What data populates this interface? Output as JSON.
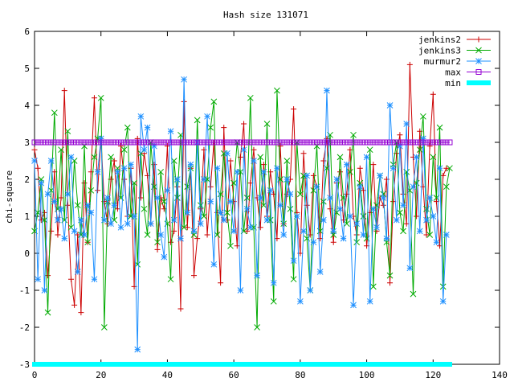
{
  "chart_data": {
    "type": "line",
    "title": "Hash size 131071",
    "xlabel": "",
    "ylabel": "chi-square",
    "xlim": [
      0,
      140
    ],
    "ylim": [
      -3,
      6
    ],
    "x_ticks": [
      0,
      20,
      40,
      60,
      80,
      100,
      120,
      140
    ],
    "y_ticks": [
      -3,
      -2,
      -1,
      0,
      1,
      2,
      3,
      4,
      5,
      6
    ],
    "legend_position": "top-right",
    "grid": false,
    "series": [
      {
        "name": "jenkins2",
        "color": "#cc0000",
        "marker": "plus",
        "values": [
          2.8,
          2.3,
          0.9,
          1.1,
          -0.6,
          0.6,
          2.2,
          0.5,
          1.5,
          4.4,
          1.3,
          -0.7,
          -1.4,
          0.5,
          -1.6,
          1.9,
          0.3,
          2.2,
          4.2,
          1.7,
          3.1,
          1.4,
          0.8,
          2.0,
          2.5,
          1.2,
          2.9,
          2.0,
          1.0,
          2.3,
          -0.9,
          3.1,
          1.5,
          2.7,
          2.1,
          0.8,
          2.4,
          0.1,
          1.5,
          1.2,
          2.9,
          0.3,
          0.6,
          1.8,
          -1.5,
          4.1,
          0.7,
          2.3,
          -0.6,
          0.4,
          1.2,
          2.8,
          0.5,
          1.8,
          3.0,
          1.1,
          -0.8,
          3.4,
          0.9,
          2.5,
          1.4,
          0.2,
          2.6,
          3.5,
          0.6,
          1.9,
          2.8,
          1.5,
          0.7,
          2.4,
          1.0,
          2.2,
          1.6,
          0.4,
          2.9,
          0.8,
          1.6,
          2.0,
          3.9,
          1.1,
          0.0,
          2.7,
          1.3,
          0.5,
          2.1,
          1.8,
          0.4,
          2.5,
          3.1,
          1.2,
          0.3,
          1.9,
          2.2,
          0.9,
          1.6,
          2.8,
          1.0,
          0.5,
          2.3,
          1.7,
          0.2,
          1.1,
          2.4,
          0.6,
          1.5,
          1.3,
          2.0,
          -0.8,
          1.4,
          2.7,
          3.2,
          1.6,
          0.8,
          5.1,
          2.6,
          1.0,
          3.3,
          1.8,
          0.5,
          2.9,
          4.3,
          1.4,
          0.2,
          2.1,
          2.3
        ]
      },
      {
        "name": "jenkins3",
        "color": "#00aa00",
        "marker": "cross",
        "values": [
          0.6,
          1.1,
          2.0,
          0.9,
          -1.6,
          1.7,
          3.8,
          1.2,
          2.8,
          0.9,
          3.3,
          0.7,
          2.5,
          1.3,
          0.5,
          2.9,
          0.3,
          1.7,
          2.6,
          3.1,
          4.2,
          -2.0,
          1.4,
          2.6,
          0.9,
          2.3,
          1.5,
          2.8,
          3.4,
          1.0,
          1.9,
          -0.3,
          2.7,
          1.2,
          0.5,
          3.0,
          1.8,
          0.3,
          2.2,
          1.4,
          0.8,
          -0.7,
          2.5,
          1.5,
          3.2,
          0.7,
          1.8,
          2.3,
          0.5,
          3.6,
          1.3,
          1.0,
          2.0,
          3.4,
          4.1,
          0.5,
          1.6,
          2.7,
          1.1,
          0.2,
          1.9,
          3.0,
          2.2,
          0.6,
          1.5,
          4.2,
          0.7,
          -2.0,
          2.6,
          1.3,
          3.5,
          0.9,
          -1.3,
          4.4,
          2.0,
          0.8,
          2.5,
          1.2,
          -0.7,
          3.0,
          1.6,
          2.1,
          0.4,
          -1.0,
          1.7,
          2.9,
          0.6,
          1.4,
          2.3,
          3.2,
          0.5,
          1.1,
          2.6,
          1.5,
          0.8,
          2.2,
          3.2,
          0.3,
          1.9,
          1.0,
          0.4,
          2.8,
          -0.9,
          1.3,
          2.1,
          1.6,
          0.3,
          -0.6,
          2.4,
          3.0,
          1.1,
          0.6,
          2.2,
          1.7,
          -1.1,
          1.9,
          2.8,
          3.7,
          1.2,
          0.5,
          2.6,
          1.5,
          3.4,
          -0.9,
          1.8,
          2.3
        ]
      },
      {
        "name": "murmur2",
        "color": "#1e90ff",
        "marker": "star",
        "values": [
          2.5,
          -0.7,
          1.9,
          -1.0,
          1.6,
          2.5,
          1.4,
          0.9,
          1.2,
          0.4,
          1.6,
          2.6,
          0.6,
          -0.5,
          0.9,
          0.5,
          1.3,
          1.1,
          -0.7,
          2.2,
          3.1,
          0.9,
          1.5,
          0.8,
          1.3,
          2.2,
          0.7,
          2.3,
          0.8,
          2.4,
          1.0,
          -2.6,
          3.7,
          2.8,
          3.4,
          0.8,
          2.9,
          1.5,
          0.5,
          -0.1,
          1.7,
          3.3,
          0.9,
          2.0,
          0.4,
          4.7,
          1.1,
          2.4,
          0.6,
          3.0,
          0.8,
          2.0,
          3.7,
          1.4,
          -0.3,
          2.3,
          1.1,
          0.9,
          2.7,
          1.4,
          0.6,
          2.2,
          -1.0,
          2.8,
          1.2,
          0.7,
          2.5,
          -0.6,
          1.5,
          2.2,
          0.9,
          1.7,
          -0.8,
          2.3,
          1.3,
          0.5,
          2.0,
          1.6,
          -0.2,
          1.0,
          -1.3,
          0.6,
          2.1,
          -1.0,
          0.3,
          1.8,
          -0.5,
          0.9,
          4.4,
          1.5,
          0.6,
          2.0,
          1.2,
          0.4,
          2.4,
          1.0,
          -1.4,
          0.8,
          1.8,
          0.5,
          2.6,
          -1.3,
          1.2,
          0.7,
          2.1,
          1.5,
          0.4,
          4.0,
          2.3,
          0.9,
          2.9,
          1.3,
          3.5,
          -0.4,
          1.8,
          2.6,
          0.6,
          3.1,
          0.9,
          1.5,
          1.0,
          0.3,
          2.3,
          -1.3,
          0.5
        ]
      },
      {
        "name": "max",
        "color": "#9400d3",
        "marker": "square",
        "constant": 3.0,
        "x_range": [
          0,
          125
        ]
      },
      {
        "name": "min",
        "color": "#00ffff",
        "marker": "filled-square",
        "constant": -3.0,
        "x_range": [
          0,
          125
        ]
      }
    ]
  }
}
